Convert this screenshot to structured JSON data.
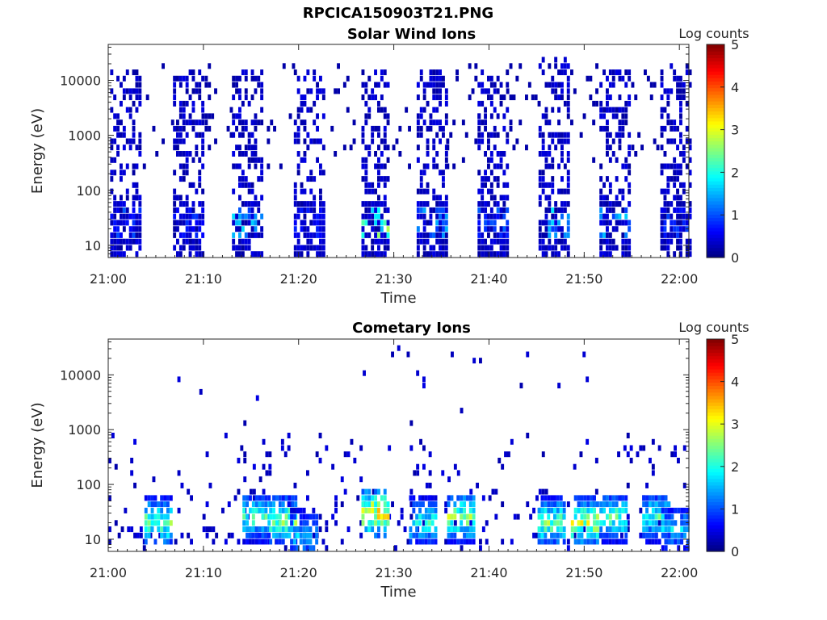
{
  "figure_title": "RPCICA150903T21.PNG",
  "chart_data": [
    {
      "type": "heatmap",
      "title": "Solar Wind Ions",
      "xlabel": "Time",
      "ylabel": "Energy (eV)",
      "x_ticks": [
        "21:00",
        "21:10",
        "21:20",
        "21:30",
        "21:40",
        "21:50",
        "22:00"
      ],
      "xlim": [
        "21:00",
        "22:01"
      ],
      "y_scale": "log",
      "y_ticks": [
        10,
        100,
        1000,
        10000
      ],
      "ylim": [
        6,
        45000
      ],
      "colorbar": {
        "label": "Log counts",
        "ticks": [
          0,
          1,
          2,
          3,
          4,
          5
        ],
        "range": [
          0,
          5
        ],
        "colormap": "jet"
      },
      "bursts": [
        {
          "start_min": 0.2,
          "end_min": 3.3,
          "max_log_counts": 1.1,
          "max_energy_eV": 16000
        },
        {
          "start_min": 6.8,
          "end_min": 9.8,
          "max_log_counts": 0.9,
          "max_energy_eV": 15000
        },
        {
          "start_min": 13.0,
          "end_min": 16.0,
          "max_log_counts": 1.8,
          "max_energy_eV": 16000
        },
        {
          "start_min": 19.5,
          "end_min": 22.7,
          "max_log_counts": 0.8,
          "max_energy_eV": 16000
        },
        {
          "start_min": 26.6,
          "end_min": 29.5,
          "max_log_counts": 2.8,
          "max_energy_eV": 16000
        },
        {
          "start_min": 32.4,
          "end_min": 35.5,
          "max_log_counts": 1.5,
          "max_energy_eV": 16000
        },
        {
          "start_min": 38.8,
          "end_min": 41.8,
          "max_log_counts": 1.2,
          "max_energy_eV": 16000
        },
        {
          "start_min": 45.2,
          "end_min": 48.2,
          "max_log_counts": 1.8,
          "max_energy_eV": 27000
        },
        {
          "start_min": 51.6,
          "end_min": 54.6,
          "max_log_counts": 1.7,
          "max_energy_eV": 16000
        },
        {
          "start_min": 58.0,
          "end_min": 61.0,
          "max_log_counts": 1.0,
          "max_energy_eV": 20000
        }
      ]
    },
    {
      "type": "heatmap",
      "title": "Cometary Ions",
      "xlabel": "Time",
      "ylabel": "Energy (eV)",
      "x_ticks": [
        "21:00",
        "21:10",
        "21:20",
        "21:30",
        "21:40",
        "21:50",
        "22:00"
      ],
      "xlim": [
        "21:00",
        "22:01"
      ],
      "y_scale": "log",
      "y_ticks": [
        10,
        100,
        1000,
        10000
      ],
      "ylim": [
        6,
        45000
      ],
      "colorbar": {
        "label": "Log counts",
        "ticks": [
          0,
          1,
          2,
          3,
          4,
          5
        ],
        "range": [
          0,
          5
        ],
        "colormap": "jet"
      },
      "bursts": [
        {
          "center_min": 5.2,
          "energy_eV": 20,
          "max_log_counts": 3.0
        },
        {
          "center_min": 15.5,
          "energy_eV": 25,
          "max_log_counts": 2.6
        },
        {
          "center_min": 18.3,
          "energy_eV": 22,
          "max_log_counts": 3.2
        },
        {
          "center_min": 20.5,
          "energy_eV": 12,
          "max_log_counts": 2.0
        },
        {
          "center_min": 28.0,
          "energy_eV": 30,
          "max_log_counts": 3.9
        },
        {
          "center_min": 33.0,
          "energy_eV": 20,
          "max_log_counts": 2.4
        },
        {
          "center_min": 37.0,
          "energy_eV": 25,
          "max_log_counts": 3.2
        },
        {
          "center_min": 46.5,
          "energy_eV": 20,
          "max_log_counts": 3.0
        },
        {
          "center_min": 50.0,
          "energy_eV": 20,
          "max_log_counts": 3.4
        },
        {
          "center_min": 53.0,
          "energy_eV": 25,
          "max_log_counts": 2.8
        },
        {
          "center_min": 57.5,
          "energy_eV": 25,
          "max_log_counts": 2.6
        },
        {
          "center_min": 59.5,
          "energy_eV": 15,
          "max_log_counts": 2.0
        }
      ]
    }
  ]
}
